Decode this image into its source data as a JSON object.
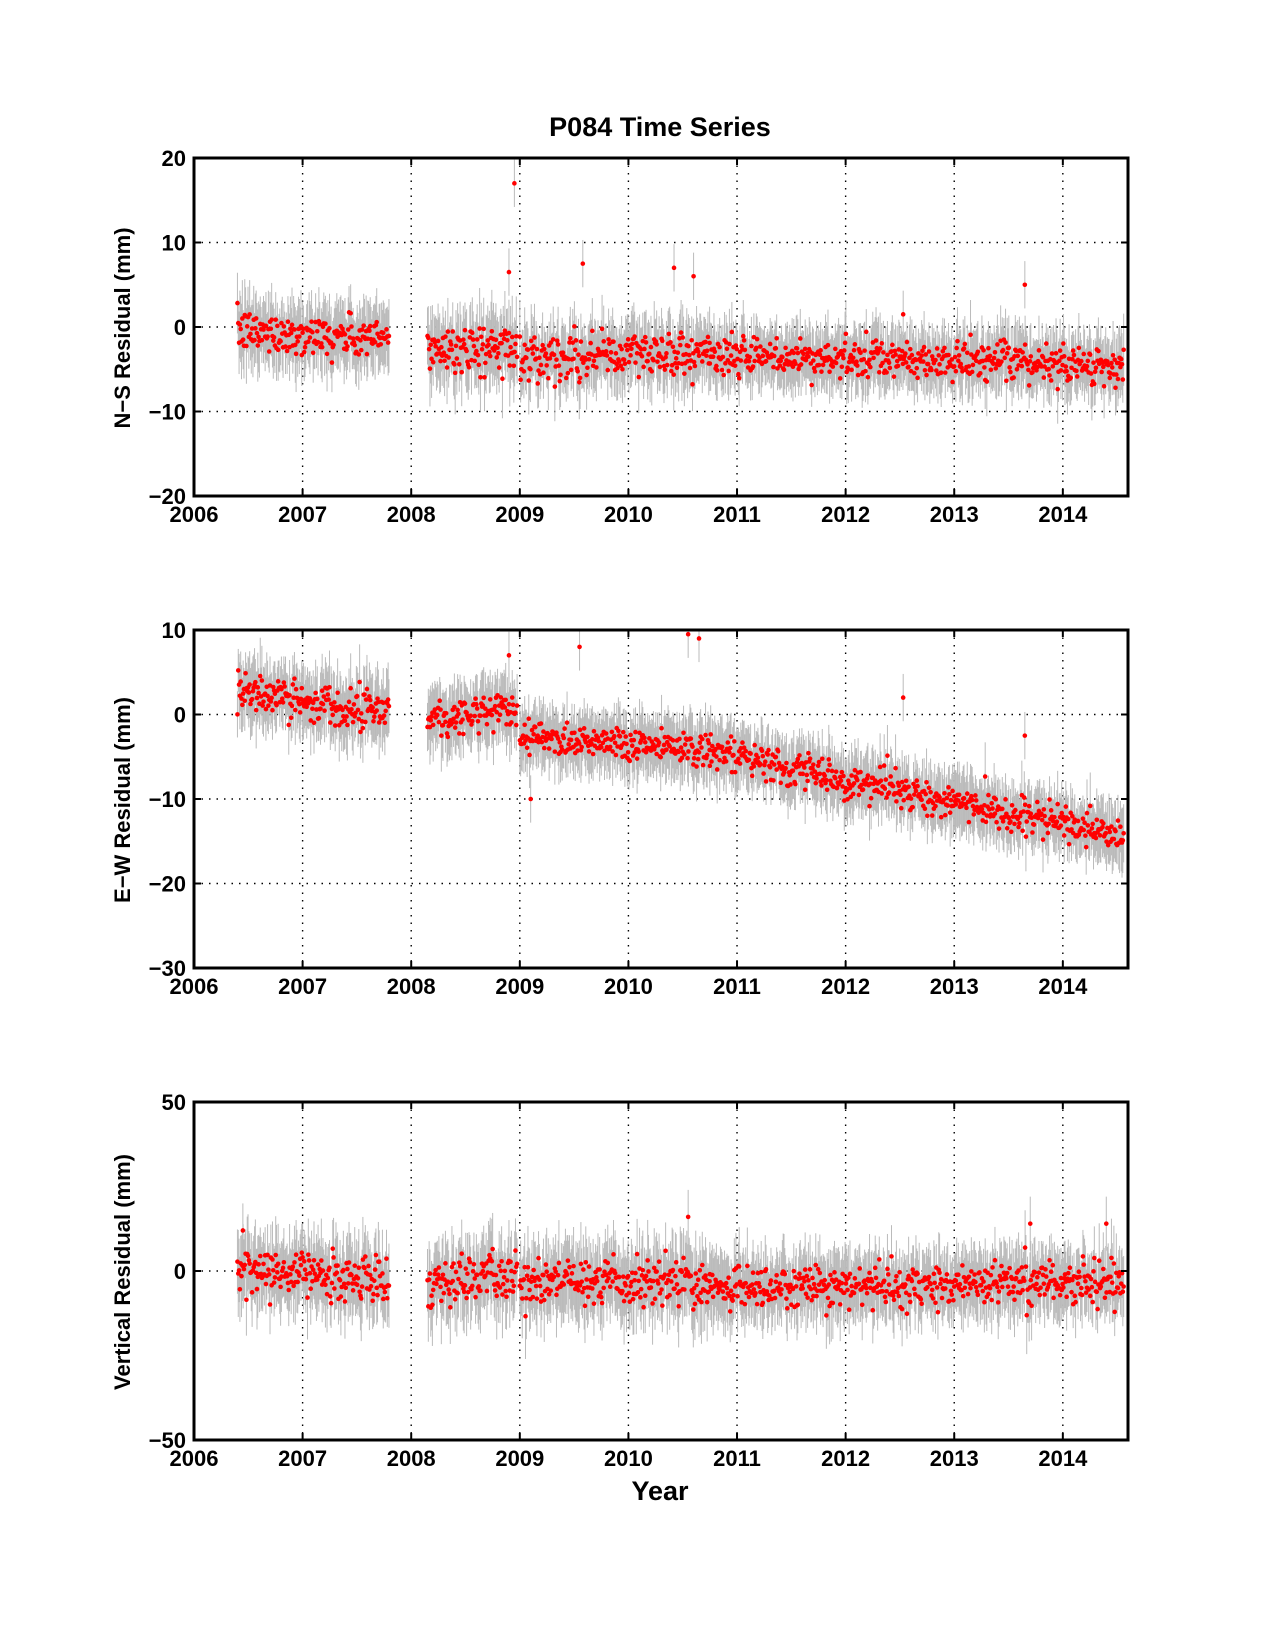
{
  "figure": {
    "title": "P084 Time Series",
    "xlabel": "Year"
  },
  "chart_data": [
    {
      "type": "scatter",
      "ylabel": "N−S Residual (mm)",
      "xlim": [
        2006,
        2014.6
      ],
      "ylim": [
        -20,
        20
      ],
      "x_ticks": [
        "2006",
        "2007",
        "2008",
        "2009",
        "2010",
        "2011",
        "2012",
        "2013",
        "2014"
      ],
      "y_ticks": [
        "20",
        "10",
        "0",
        "−10",
        "−20"
      ],
      "y_tick_values": [
        20,
        10,
        0,
        -10,
        -20
      ],
      "grid": true,
      "error_bars": true,
      "marker_color": "#ff0000",
      "error_bar_color": "#bbbbbb",
      "segments": [
        {
          "x": [
            2006.4,
            2007.8
          ],
          "trend": [
            -0.5,
            -1.5
          ],
          "scatter": 1.2,
          "err": 3.5
        },
        {
          "x": [
            2008.15,
            2008.98
          ],
          "trend": [
            -2.5,
            -2.5
          ],
          "scatter": 1.4,
          "err": 3.8
        },
        {
          "x": [
            2009.0,
            2010.75
          ],
          "trend": [
            -3.5,
            -3.0
          ],
          "scatter": 1.3,
          "err": 3.5
        },
        {
          "x": [
            2010.75,
            2014.56
          ],
          "trend": [
            -3.5,
            -4.5
          ],
          "scatter": 1.1,
          "err": 3.3
        }
      ],
      "events": [
        {
          "x": 2008.95,
          "y": 17
        },
        {
          "x": 2008.9,
          "y": 6.5
        },
        {
          "x": 2009.58,
          "y": 7.5
        },
        {
          "x": 2010.42,
          "y": 7.0
        },
        {
          "x": 2010.6,
          "y": 6.0
        },
        {
          "x": 2013.65,
          "y": 5.0
        },
        {
          "x": 2012.53,
          "y": 1.5
        }
      ]
    },
    {
      "type": "scatter",
      "ylabel": "E−W Residual (mm)",
      "xlim": [
        2006,
        2014.6
      ],
      "ylim": [
        -30,
        10
      ],
      "x_ticks": [
        "2006",
        "2007",
        "2008",
        "2009",
        "2010",
        "2011",
        "2012",
        "2013",
        "2014"
      ],
      "y_ticks": [
        "10",
        "0",
        "−10",
        "−20",
        "−30"
      ],
      "y_tick_values": [
        10,
        0,
        -10,
        -20,
        -30
      ],
      "grid": true,
      "error_bars": true,
      "marker_color": "#ff0000",
      "error_bar_color": "#bbbbbb",
      "segments": [
        {
          "x": [
            2006.4,
            2007.8
          ],
          "trend": [
            2.5,
            0.5
          ],
          "scatter": 1.2,
          "err": 3.5
        },
        {
          "x": [
            2008.15,
            2008.98
          ],
          "trend": [
            -0.5,
            0.5
          ],
          "scatter": 1.2,
          "err": 3.5
        },
        {
          "x": [
            2009.0,
            2010.75
          ],
          "trend": [
            -2.5,
            -4.0
          ],
          "scatter": 1.0,
          "err": 3.2
        },
        {
          "x": [
            2010.75,
            2014.56
          ],
          "trend": [
            -4.5,
            -14.5
          ],
          "scatter": 1.0,
          "err": 3.2
        }
      ],
      "events": [
        {
          "x": 2008.9,
          "y": 7.0
        },
        {
          "x": 2009.1,
          "y": -10.0
        },
        {
          "x": 2009.55,
          "y": 8.0
        },
        {
          "x": 2010.55,
          "y": 9.5
        },
        {
          "x": 2010.65,
          "y": 9.0
        },
        {
          "x": 2012.53,
          "y": 2.0
        },
        {
          "x": 2013.65,
          "y": -2.5
        }
      ]
    },
    {
      "type": "scatter",
      "ylabel": "Vertical Residual (mm)",
      "xlim": [
        2006,
        2014.6
      ],
      "ylim": [
        -50,
        50
      ],
      "x_ticks": [
        "2006",
        "2007",
        "2008",
        "2009",
        "2010",
        "2011",
        "2012",
        "2013",
        "2014"
      ],
      "y_ticks": [
        "50",
        "0",
        "−50"
      ],
      "y_tick_values": [
        50,
        0,
        -50
      ],
      "grid": true,
      "error_bars": true,
      "marker_color": "#ff0000",
      "error_bar_color": "#bbbbbb",
      "segments": [
        {
          "x": [
            2006.4,
            2007.8
          ],
          "trend": [
            0,
            -3
          ],
          "scatter": 3.5,
          "err": 10
        },
        {
          "x": [
            2008.15,
            2008.98
          ],
          "trend": [
            -3,
            -2
          ],
          "scatter": 3.5,
          "err": 10
        },
        {
          "x": [
            2009.0,
            2010.75
          ],
          "trend": [
            -3,
            -4
          ],
          "scatter": 3.5,
          "err": 10
        },
        {
          "x": [
            2010.75,
            2014.56
          ],
          "trend": [
            -5,
            -3
          ],
          "scatter": 3.2,
          "err": 9
        }
      ],
      "events": [
        {
          "x": 2010.55,
          "y": 16
        },
        {
          "x": 2013.7,
          "y": 14
        },
        {
          "x": 2014.4,
          "y": 14
        },
        {
          "x": 2006.45,
          "y": 12
        }
      ]
    }
  ]
}
